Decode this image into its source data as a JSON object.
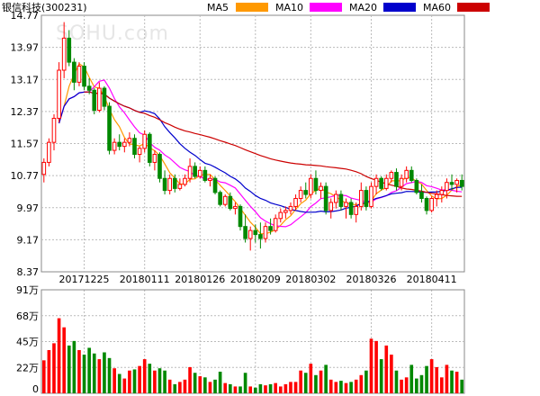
{
  "chart_data": {
    "type": "candlestick",
    "title": "银信科技(300231)",
    "legend": [
      {
        "name": "MA5",
        "color": "#ff9900"
      },
      {
        "name": "MA10",
        "color": "#ff00ff"
      },
      {
        "name": "MA20",
        "color": "#0000cc"
      },
      {
        "name": "MA60",
        "color": "#cc0000"
      }
    ],
    "price_axis": {
      "ticks": [
        "14.77",
        "13.97",
        "13.17",
        "12.37",
        "11.57",
        "10.77",
        "9.97",
        "9.17",
        "8.37"
      ],
      "min": 8.37,
      "max": 14.77
    },
    "volume_axis": {
      "ticks": [
        "91万",
        "68万",
        "45万",
        "22万",
        "0"
      ],
      "max": 91
    },
    "date_labels": [
      {
        "label": "20171225",
        "index": 8
      },
      {
        "label": "20180111",
        "index": 20
      },
      {
        "label": "20180126",
        "index": 31
      },
      {
        "label": "20180209",
        "index": 42
      },
      {
        "label": "20180302",
        "index": 53
      },
      {
        "label": "20180326",
        "index": 65
      },
      {
        "label": "20180411",
        "index": 77
      }
    ],
    "watermark": "SOHU.com",
    "colors": {
      "up": "#ff0000",
      "down": "#008800",
      "grid": "#bbbbbb"
    },
    "candles": [
      [
        10.8,
        11.2,
        10.6,
        11.1,
        29,
        "up"
      ],
      [
        11.1,
        11.7,
        11.0,
        11.6,
        38,
        "up"
      ],
      [
        11.6,
        12.3,
        11.4,
        12.2,
        44,
        "up"
      ],
      [
        12.2,
        13.6,
        12.1,
        13.4,
        66,
        "up"
      ],
      [
        13.4,
        14.6,
        13.2,
        14.2,
        58,
        "up"
      ],
      [
        14.2,
        14.4,
        13.5,
        13.6,
        42,
        "down"
      ],
      [
        13.6,
        13.7,
        12.9,
        13.1,
        46,
        "down"
      ],
      [
        13.1,
        13.6,
        13.0,
        13.5,
        38,
        "up"
      ],
      [
        13.5,
        13.6,
        12.9,
        13.0,
        34,
        "down"
      ],
      [
        13.0,
        13.2,
        12.8,
        12.9,
        40,
        "down"
      ],
      [
        12.9,
        12.95,
        12.3,
        12.4,
        35,
        "down"
      ],
      [
        12.4,
        13.1,
        12.35,
        12.95,
        30,
        "up"
      ],
      [
        12.95,
        13.0,
        12.4,
        12.5,
        36,
        "down"
      ],
      [
        12.5,
        12.6,
        11.3,
        11.4,
        31,
        "down"
      ],
      [
        11.4,
        11.7,
        11.3,
        11.6,
        22,
        "up"
      ],
      [
        11.6,
        11.8,
        11.4,
        11.5,
        17,
        "down"
      ],
      [
        11.5,
        11.7,
        11.35,
        11.6,
        13,
        "up"
      ],
      [
        11.6,
        11.85,
        11.5,
        11.7,
        20,
        "up"
      ],
      [
        11.7,
        11.8,
        11.2,
        11.3,
        21,
        "down"
      ],
      [
        11.3,
        11.5,
        11.1,
        11.45,
        24,
        "up"
      ],
      [
        11.45,
        11.9,
        11.35,
        11.8,
        30,
        "up"
      ],
      [
        11.8,
        11.85,
        11.0,
        11.1,
        26,
        "down"
      ],
      [
        11.1,
        11.4,
        10.9,
        11.3,
        20,
        "up"
      ],
      [
        11.3,
        11.35,
        10.6,
        10.7,
        22,
        "down"
      ],
      [
        10.7,
        10.9,
        10.3,
        10.4,
        20,
        "down"
      ],
      [
        10.4,
        10.8,
        10.3,
        10.7,
        12,
        "up"
      ],
      [
        10.7,
        10.8,
        10.35,
        10.45,
        8,
        "down"
      ],
      [
        10.45,
        10.7,
        10.4,
        10.55,
        10,
        "up"
      ],
      [
        10.55,
        10.8,
        10.5,
        10.7,
        12,
        "up"
      ],
      [
        10.7,
        11.2,
        10.6,
        11.0,
        23,
        "up"
      ],
      [
        11.0,
        11.1,
        10.7,
        10.75,
        18,
        "down"
      ],
      [
        10.75,
        11.0,
        10.7,
        10.9,
        15,
        "up"
      ],
      [
        10.9,
        11.0,
        10.6,
        10.65,
        14,
        "down"
      ],
      [
        10.65,
        10.8,
        10.5,
        10.7,
        10,
        "up"
      ],
      [
        10.7,
        10.75,
        10.3,
        10.35,
        12,
        "down"
      ],
      [
        10.35,
        10.4,
        10.0,
        10.05,
        19,
        "down"
      ],
      [
        10.05,
        10.3,
        10.0,
        10.25,
        9,
        "up"
      ],
      [
        10.25,
        10.35,
        9.9,
        9.95,
        8,
        "down"
      ],
      [
        9.95,
        10.1,
        9.8,
        10.0,
        6,
        "up"
      ],
      [
        10.0,
        10.05,
        9.4,
        9.5,
        6,
        "down"
      ],
      [
        9.5,
        9.8,
        9.1,
        9.2,
        18,
        "down"
      ],
      [
        9.2,
        9.5,
        8.9,
        9.4,
        6,
        "up"
      ],
      [
        9.4,
        9.55,
        9.1,
        9.3,
        5,
        "down"
      ],
      [
        9.3,
        9.6,
        8.95,
        9.2,
        8,
        "down"
      ],
      [
        9.2,
        9.6,
        9.1,
        9.5,
        7,
        "up"
      ],
      [
        9.5,
        9.7,
        9.3,
        9.4,
        8,
        "down"
      ],
      [
        9.4,
        9.8,
        9.35,
        9.7,
        9,
        "up"
      ],
      [
        9.7,
        9.95,
        9.6,
        9.85,
        6,
        "up"
      ],
      [
        9.85,
        10.0,
        9.7,
        9.9,
        8,
        "up"
      ],
      [
        9.9,
        10.1,
        9.8,
        10.0,
        10,
        "up"
      ],
      [
        10.0,
        10.3,
        9.9,
        10.2,
        10,
        "up"
      ],
      [
        10.2,
        10.5,
        10.1,
        10.4,
        20,
        "up"
      ],
      [
        10.4,
        10.6,
        10.2,
        10.3,
        18,
        "down"
      ],
      [
        10.3,
        10.8,
        10.2,
        10.7,
        26,
        "up"
      ],
      [
        10.7,
        10.9,
        10.3,
        10.4,
        16,
        "down"
      ],
      [
        10.4,
        10.6,
        10.2,
        10.5,
        20,
        "up"
      ],
      [
        10.5,
        10.6,
        9.8,
        9.9,
        25,
        "down"
      ],
      [
        9.9,
        10.2,
        9.7,
        10.1,
        12,
        "up"
      ],
      [
        10.1,
        10.4,
        9.95,
        10.3,
        10,
        "up"
      ],
      [
        10.3,
        10.4,
        9.9,
        10.0,
        11,
        "down"
      ],
      [
        10.0,
        10.2,
        9.7,
        10.1,
        9,
        "up"
      ],
      [
        10.1,
        10.2,
        9.7,
        9.8,
        10,
        "down"
      ],
      [
        9.8,
        10.1,
        9.6,
        10.0,
        12,
        "up"
      ],
      [
        10.0,
        10.6,
        9.9,
        10.4,
        16,
        "up"
      ],
      [
        10.4,
        10.5,
        9.9,
        10.0,
        20,
        "down"
      ],
      [
        10.0,
        10.6,
        9.95,
        10.5,
        48,
        "up"
      ],
      [
        10.5,
        10.8,
        10.3,
        10.7,
        46,
        "up"
      ],
      [
        10.7,
        10.75,
        10.4,
        10.45,
        30,
        "down"
      ],
      [
        10.45,
        10.8,
        10.4,
        10.7,
        42,
        "up"
      ],
      [
        10.7,
        10.9,
        10.6,
        10.85,
        34,
        "up"
      ],
      [
        10.85,
        10.95,
        10.4,
        10.5,
        20,
        "down"
      ],
      [
        10.5,
        10.8,
        10.4,
        10.7,
        12,
        "up"
      ],
      [
        10.7,
        11.0,
        10.6,
        10.9,
        14,
        "up"
      ],
      [
        10.9,
        11.0,
        10.6,
        10.65,
        25,
        "down"
      ],
      [
        10.65,
        10.7,
        10.3,
        10.35,
        13,
        "down"
      ],
      [
        10.35,
        10.55,
        10.1,
        10.2,
        16,
        "down"
      ],
      [
        10.2,
        10.25,
        9.8,
        9.9,
        24,
        "down"
      ],
      [
        9.9,
        10.25,
        9.85,
        10.2,
        30,
        "up"
      ],
      [
        10.2,
        10.4,
        10.0,
        10.3,
        23,
        "up"
      ],
      [
        10.3,
        10.5,
        10.1,
        10.4,
        14,
        "up"
      ],
      [
        10.4,
        10.7,
        10.2,
        10.6,
        25,
        "up"
      ],
      [
        10.6,
        10.8,
        10.4,
        10.55,
        20,
        "down"
      ],
      [
        10.55,
        10.7,
        10.35,
        10.65,
        19,
        "up"
      ],
      [
        10.65,
        10.8,
        10.4,
        10.5,
        12,
        "down"
      ]
    ]
  }
}
